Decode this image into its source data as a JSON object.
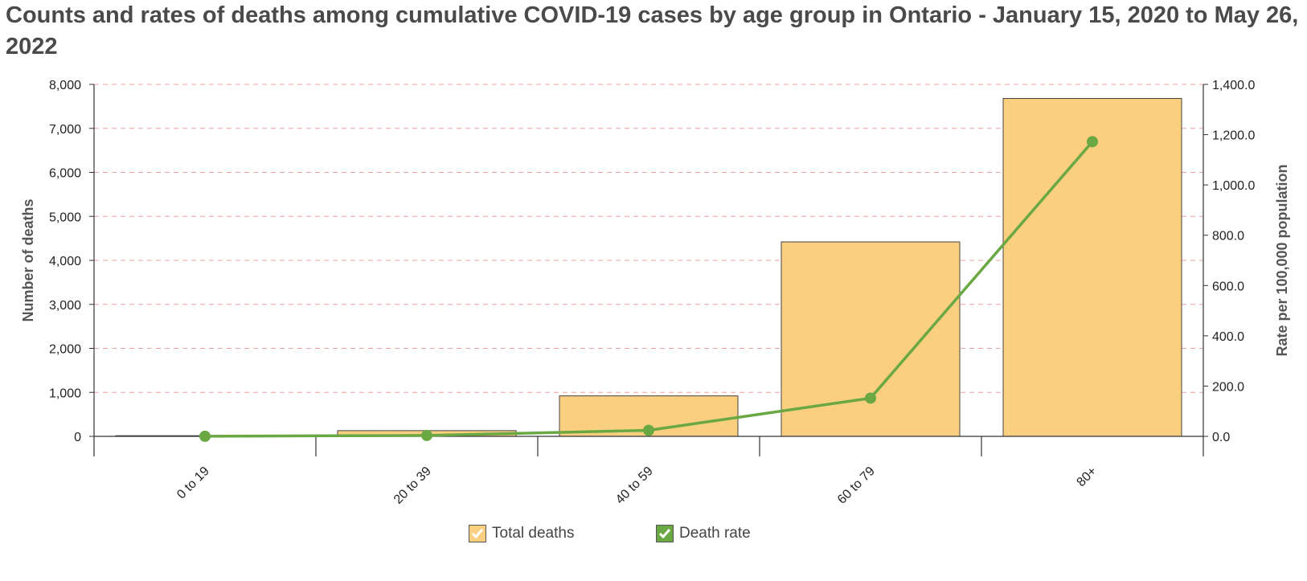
{
  "title": "Counts and rates of deaths among cumulative COVID-19 cases by age group  in Ontario - January 15, 2020 to May 26, 2022",
  "chart_data": {
    "type": "bar",
    "categories": [
      "0 to 19",
      "20 to 39",
      "40 to 59",
      "60 to 79",
      "80+"
    ],
    "series": [
      {
        "name": "Total deaths",
        "type": "bar",
        "axis": "left",
        "color": "#fbcf80",
        "values": [
          15,
          130,
          920,
          4420,
          7680
        ]
      },
      {
        "name": "Death rate",
        "type": "line",
        "axis": "right",
        "color": "#6aa843",
        "values": [
          0.4,
          3.5,
          24.0,
          152.0,
          1172.0
        ]
      }
    ],
    "ylabel": "Number of deaths",
    "ylim": [
      0,
      8000
    ],
    "yticks": [
      "0",
      "1,000",
      "2,000",
      "3,000",
      "4,000",
      "5,000",
      "6,000",
      "7,000",
      "8,000"
    ],
    "y2label": "Rate per 100,000 population",
    "y2lim": [
      0,
      1400
    ],
    "y2ticks": [
      "0.0",
      "200.0",
      "400.0",
      "600.0",
      "800.0",
      "1,000.0",
      "1,200.0",
      "1,400.0"
    ],
    "grid": true,
    "legend_position": "bottom-center"
  },
  "legend": [
    {
      "label": "Total deaths",
      "color": "#fbcf80",
      "icon": "check-icon"
    },
    {
      "label": "Death rate",
      "color": "#6aa843",
      "icon": "check-icon"
    }
  ]
}
